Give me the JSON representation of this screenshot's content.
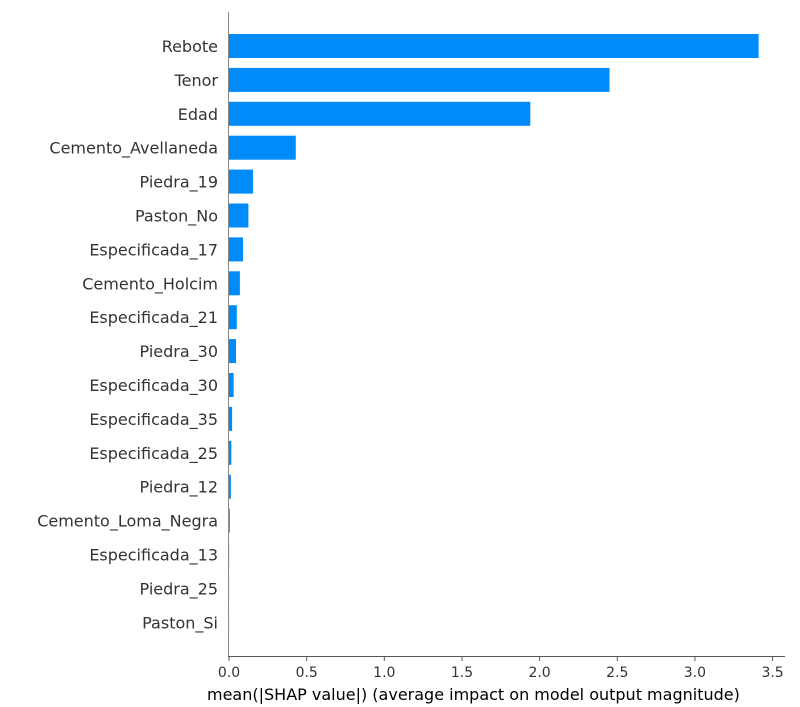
{
  "chart_data": {
    "type": "bar",
    "orientation": "horizontal",
    "categories": [
      "Rebote",
      "Tenor",
      "Edad",
      "Cemento_Avellaneda",
      "Piedra_19",
      "Paston_No",
      "Especificada_17",
      "Cemento_Holcim",
      "Especificada_21",
      "Piedra_30",
      "Especificada_30",
      "Especificada_35",
      "Especificada_25",
      "Piedra_12",
      "Cemento_Loma_Negra",
      "Especificada_13",
      "Piedra_25",
      "Paston_Si"
    ],
    "values": [
      3.41,
      2.45,
      1.94,
      0.43,
      0.155,
      0.125,
      0.09,
      0.07,
      0.05,
      0.045,
      0.03,
      0.02,
      0.015,
      0.012,
      0.005,
      0.001,
      0.0005,
      0.0003
    ],
    "xlabel": "mean(|SHAP value|) (average impact on model output magnitude)",
    "ylabel": "",
    "xlim": [
      0,
      3.58
    ],
    "xticks": [
      "0.0",
      "0.5",
      "1.0",
      "1.5",
      "2.0",
      "2.5",
      "3.0",
      "3.5"
    ],
    "grid": false,
    "bar_color": "#008bfb"
  }
}
